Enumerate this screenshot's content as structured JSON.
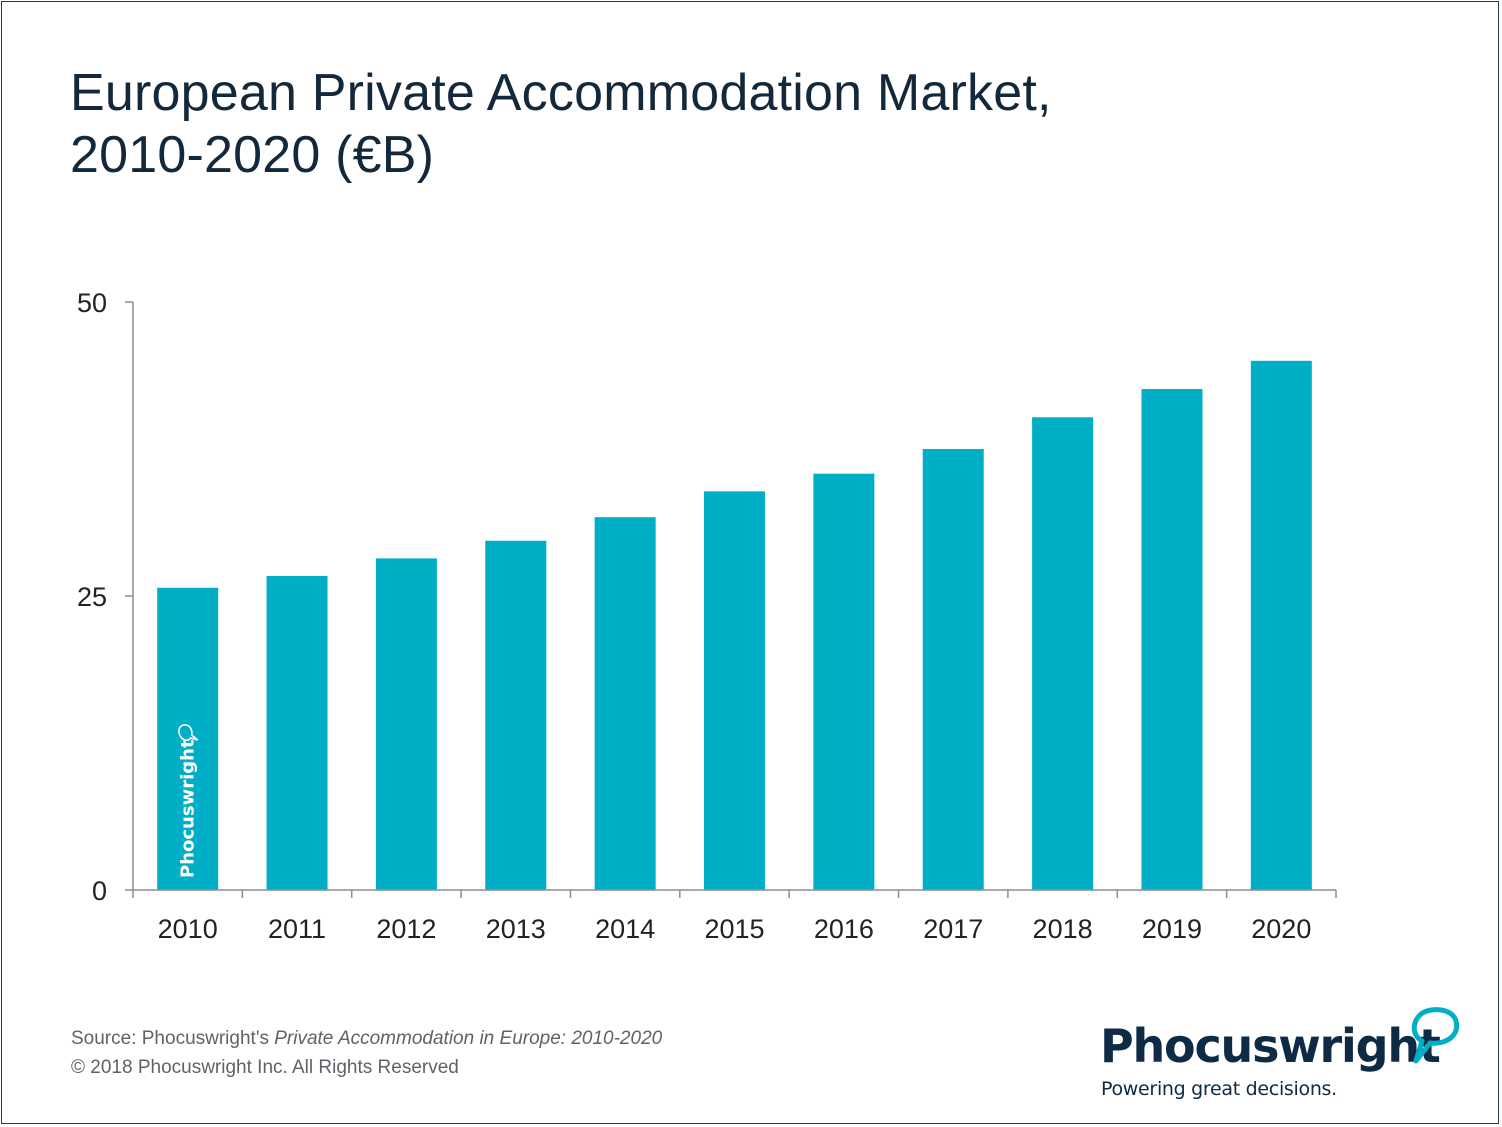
{
  "title_line1": "European Private Accommodation Market,",
  "title_line2": "2010-2020 (€B)",
  "source_prefix": "Source: Phocuswright's ",
  "source_italic": "Private Accommodation in Europe: 2010-2020",
  "copyright": "© 2018 Phocuswright Inc. All Rights Reserved",
  "logo": {
    "wordmark": "Phocuswright",
    "tagline": "Powering great decisions.",
    "mark_icon": "speech-bubble-icon"
  },
  "watermark": "Phocuswright",
  "colors": {
    "bar": "#00afc6",
    "title": "#13283b",
    "frame": "#1f3c55",
    "axis": "#8a8f95",
    "text": "#5f6368"
  },
  "chart_data": {
    "type": "bar",
    "title": "European Private Accommodation Market, 2010-2020 (€B)",
    "xlabel": "",
    "ylabel": "",
    "categories": [
      "2010",
      "2011",
      "2012",
      "2013",
      "2014",
      "2015",
      "2016",
      "2017",
      "2018",
      "2019",
      "2020"
    ],
    "values": [
      25.7,
      26.7,
      28.2,
      29.7,
      31.7,
      33.9,
      35.4,
      37.5,
      40.2,
      42.6,
      45.0
    ],
    "ylim": [
      0,
      50
    ],
    "yticks": [
      "0",
      "25",
      "50"
    ],
    "grid": false,
    "legend": "none"
  }
}
